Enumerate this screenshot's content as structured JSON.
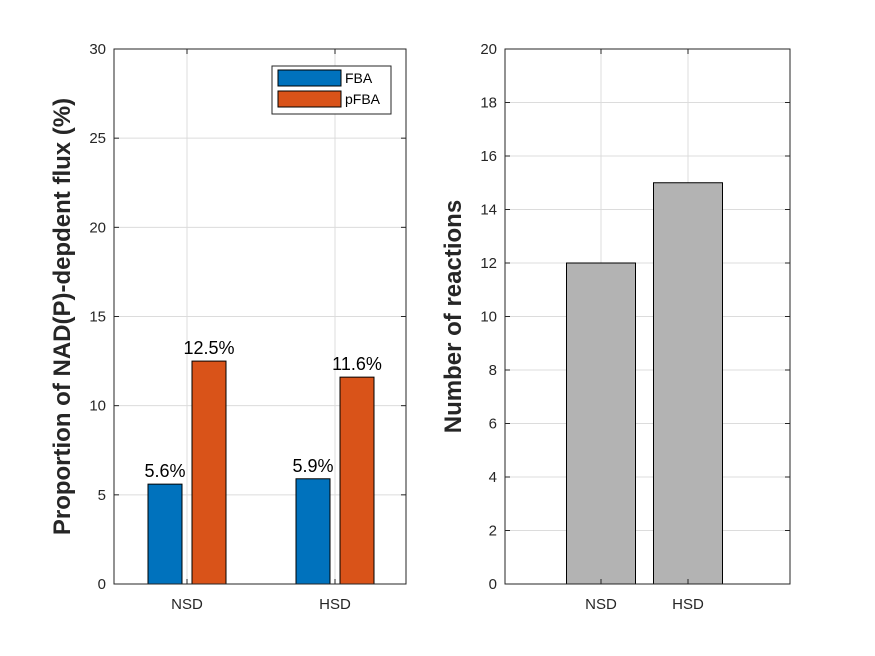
{
  "colors": {
    "fba": "#0072BD",
    "pfba": "#D95319",
    "reactions": "#B3B3B3"
  },
  "chart_data": [
    {
      "type": "bar",
      "title": "",
      "xlabel": "",
      "ylabel": "Proportion of NAD(P)-depdent flux (%)",
      "categories": [
        "NSD",
        "HSD"
      ],
      "series": [
        {
          "name": "FBA",
          "values": [
            5.6,
            5.9
          ],
          "labels": [
            "5.6%",
            "5.9%"
          ]
        },
        {
          "name": "pFBA",
          "values": [
            12.5,
            11.6
          ],
          "labels": [
            "12.5%",
            "11.6%"
          ]
        }
      ],
      "ylim": [
        0,
        30
      ],
      "yticks": [
        0,
        5,
        10,
        15,
        20,
        25,
        30
      ],
      "grid": true,
      "legend": "top-right"
    },
    {
      "type": "bar",
      "title": "",
      "xlabel": "",
      "ylabel": "Number of reactions",
      "categories": [
        "NSD",
        "HSD"
      ],
      "values": [
        12,
        15
      ],
      "ylim": [
        0,
        20
      ],
      "yticks": [
        0,
        2,
        4,
        6,
        8,
        10,
        12,
        14,
        16,
        18,
        20
      ],
      "grid": true
    }
  ]
}
